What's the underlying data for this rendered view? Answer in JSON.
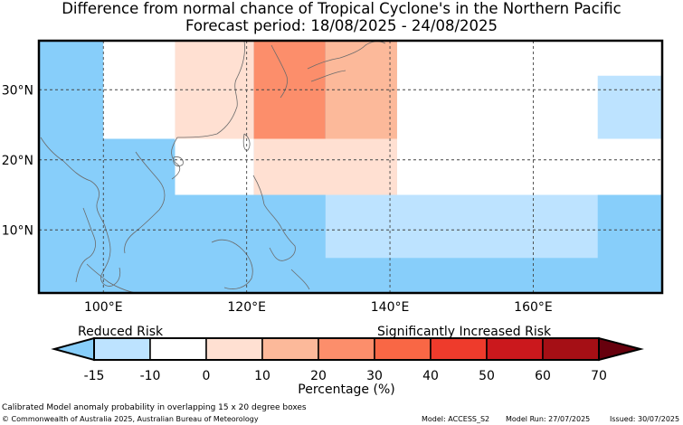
{
  "title": "Difference from normal chance of Tropical Cyclone's in the Northern Pacific",
  "subtitle": "Forecast period: 18/08/2025 - 24/08/2025",
  "map": {
    "lon_range": [
      91,
      178
    ],
    "lat_range": [
      1,
      37
    ],
    "x_ticks": [
      {
        "value": 100,
        "label": "100°E"
      },
      {
        "value": 120,
        "label": "120°E"
      },
      {
        "value": 140,
        "label": "140°E"
      },
      {
        "value": 160,
        "label": "160°E"
      }
    ],
    "y_ticks": [
      {
        "value": 30,
        "label": "30°N"
      },
      {
        "value": 20,
        "label": "20°N"
      },
      {
        "value": 10,
        "label": "10°N"
      }
    ],
    "grid": "dashed",
    "cells": [
      {
        "lon": [
          91,
          178
        ],
        "lat": [
          1,
          37
        ],
        "bin": "-15"
      },
      {
        "lon": [
          100,
          110
        ],
        "lat": [
          23,
          37
        ],
        "bin": "-10"
      },
      {
        "lon": [
          110,
          121
        ],
        "lat": [
          23,
          37
        ],
        "bin": "0"
      },
      {
        "lon": [
          121,
          131
        ],
        "lat": [
          23,
          37
        ],
        "bin": "20"
      },
      {
        "lon": [
          131,
          141
        ],
        "lat": [
          23,
          37
        ],
        "bin": "10"
      },
      {
        "lon": [
          141,
          178
        ],
        "lat": [
          15,
          37
        ],
        "bin": "-10"
      },
      {
        "lon": [
          110,
          121
        ],
        "lat": [
          15,
          23
        ],
        "bin": "-10"
      },
      {
        "lon": [
          121,
          141
        ],
        "lat": [
          15,
          23
        ],
        "bin": "0"
      },
      {
        "lon": [
          141,
          161
        ],
        "lat": [
          15,
          32
        ],
        "bin": "-10"
      },
      {
        "lon": [
          161,
          178
        ],
        "lat": [
          32,
          37
        ],
        "bin": "-10"
      },
      {
        "lon": [
          131,
          169
        ],
        "lat": [
          6,
          15
        ],
        "bin": "-15b"
      },
      {
        "lon": [
          169,
          178
        ],
        "lat": [
          23,
          32
        ],
        "bin": "-15b"
      }
    ]
  },
  "legend": {
    "left_label": "Reduced Risk",
    "right_label": "Significantly Increased Risk",
    "ticks": [
      "-15",
      "-10",
      "0",
      "10",
      "20",
      "30",
      "40",
      "50",
      "60",
      "70"
    ],
    "xlabel": "Percentage (%)",
    "colors": [
      "#bde3ff",
      "#ffffff",
      "#ffe0d2",
      "#fcb99a",
      "#fc8e6b",
      "#f96745",
      "#ee3b2c",
      "#cb181d",
      "#a50f15"
    ],
    "low_extend_color": "#87cefa",
    "high_extend_color": "#67000d"
  },
  "bin_colors": {
    "-15": "#87cefa",
    "-15b": "#bde3ff",
    "-10": "#ffffff",
    "0": "#ffe0d2",
    "10": "#fcb99a",
    "20": "#fc8e6b"
  },
  "footer": {
    "note": "Calibrated Model anomaly probability in overlapping 15 x 20 degree boxes",
    "copyright": "© Commonwealth of Australia 2025, Australian Bureau of Meteorology",
    "model": "Model: ACCESS_S2",
    "model_run": "Model Run: 27/07/2025",
    "issued": "Issued: 30/07/2025"
  }
}
